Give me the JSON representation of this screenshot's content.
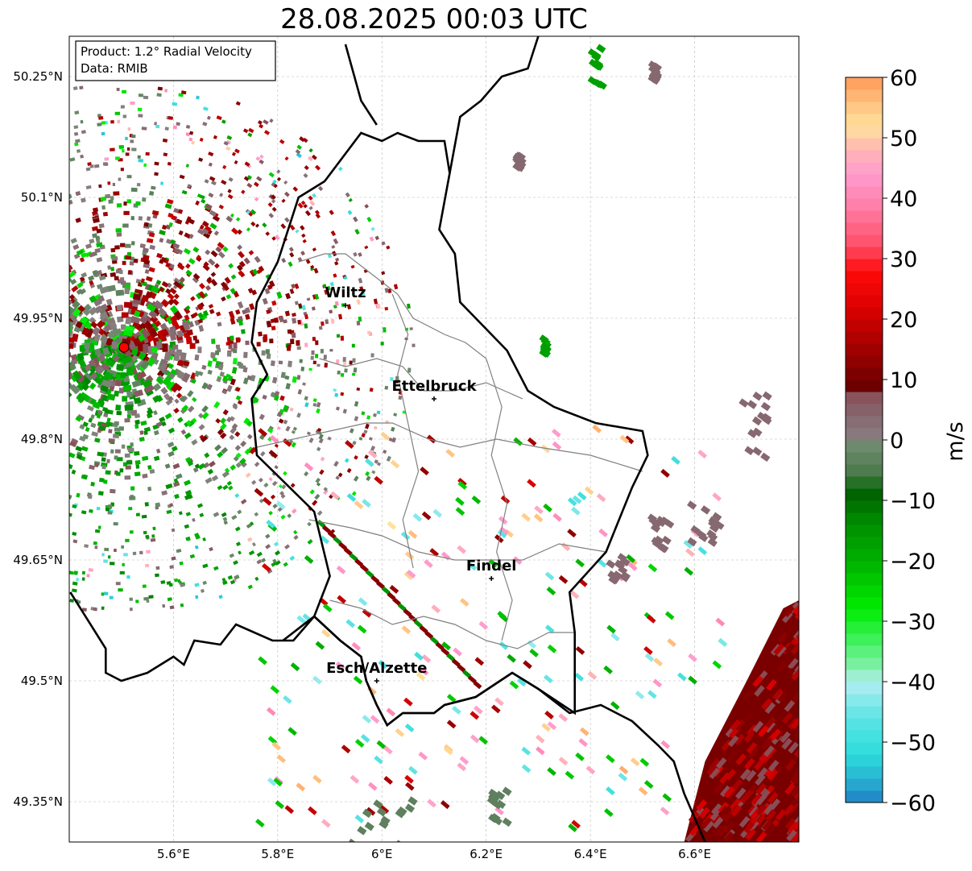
{
  "title": "28.08.2025 00:03 UTC",
  "info_box": {
    "product_line": "Product: 1.2° Radial Velocity",
    "data_line": "Data: RMIB"
  },
  "axes": {
    "lon_range": [
      5.4,
      6.8
    ],
    "lat_range": [
      49.3,
      50.3
    ],
    "lon_ticks": [
      {
        "value": 5.6,
        "label": "5.6°E"
      },
      {
        "value": 5.8,
        "label": "5.8°E"
      },
      {
        "value": 6.0,
        "label": "6°E"
      },
      {
        "value": 6.2,
        "label": "6.2°E"
      },
      {
        "value": 6.4,
        "label": "6.4°E"
      },
      {
        "value": 6.6,
        "label": "6.6°E"
      }
    ],
    "lat_ticks": [
      {
        "value": 50.25,
        "label": "50.25°N"
      },
      {
        "value": 50.1,
        "label": "50.1°N"
      },
      {
        "value": 49.95,
        "label": "49.95°N"
      },
      {
        "value": 49.8,
        "label": "49.8°N"
      },
      {
        "value": 49.65,
        "label": "49.65°N"
      },
      {
        "value": 49.5,
        "label": "49.5°N"
      },
      {
        "value": 49.35,
        "label": "49.35°N"
      }
    ]
  },
  "cities": [
    {
      "name": "Wiltz",
      "lon": 5.93,
      "lat": 49.966
    },
    {
      "name": "Ettelbruck",
      "lon": 6.1,
      "lat": 49.85
    },
    {
      "name": "Findel",
      "lon": 6.21,
      "lat": 49.627
    },
    {
      "name": "Esch/Alzette",
      "lon": 5.99,
      "lat": 49.5
    }
  ],
  "radar_site": {
    "lon": 5.505,
    "lat": 49.914,
    "color": "#ff0000"
  },
  "colorbar": {
    "label": "m/s",
    "min": -60,
    "max": 60,
    "ticks": [
      {
        "value": 60,
        "label": "60"
      },
      {
        "value": 50,
        "label": "50"
      },
      {
        "value": 40,
        "label": "40"
      },
      {
        "value": 30,
        "label": "30"
      },
      {
        "value": 20,
        "label": "20"
      },
      {
        "value": 10,
        "label": "10"
      },
      {
        "value": 0,
        "label": "0"
      },
      {
        "value": -10,
        "label": "−10"
      },
      {
        "value": -20,
        "label": "−20"
      },
      {
        "value": -30,
        "label": "−30"
      },
      {
        "value": -40,
        "label": "−40"
      },
      {
        "value": -50,
        "label": "−50"
      },
      {
        "value": -60,
        "label": "−60"
      }
    ],
    "stops": [
      {
        "value": -60,
        "color": "#1f7fc4"
      },
      {
        "value": -56,
        "color": "#29b4d2"
      },
      {
        "value": -52,
        "color": "#2ddcdc"
      },
      {
        "value": -46,
        "color": "#5de3e3"
      },
      {
        "value": -40,
        "color": "#b3eef2"
      },
      {
        "value": -38,
        "color": "#88f0b0"
      },
      {
        "value": -33,
        "color": "#3ef05a"
      },
      {
        "value": -28,
        "color": "#00ee00"
      },
      {
        "value": -20,
        "color": "#00b000"
      },
      {
        "value": -14,
        "color": "#009000"
      },
      {
        "value": -9,
        "color": "#006400"
      },
      {
        "value": -5,
        "color": "#4e7c4e"
      },
      {
        "value": -1,
        "color": "#6e8a6e"
      },
      {
        "value": 0,
        "color": "#888080"
      },
      {
        "value": 4,
        "color": "#866870"
      },
      {
        "value": 8,
        "color": "#8a4c55"
      },
      {
        "value": 9,
        "color": "#6c0000"
      },
      {
        "value": 15,
        "color": "#a00000"
      },
      {
        "value": 22,
        "color": "#dd0000"
      },
      {
        "value": 28,
        "color": "#ff0a0a"
      },
      {
        "value": 32,
        "color": "#ff4c66"
      },
      {
        "value": 38,
        "color": "#ff7aa2"
      },
      {
        "value": 44,
        "color": "#ff9ccf"
      },
      {
        "value": 48,
        "color": "#ffb4b4"
      },
      {
        "value": 52,
        "color": "#ffe29a"
      },
      {
        "value": 56,
        "color": "#ffbf80"
      },
      {
        "value": 60,
        "color": "#ff9a55"
      }
    ]
  },
  "borders": {
    "country": [
      [
        [
          5.402,
          49.61
        ],
        [
          5.47,
          49.54
        ],
        [
          5.47,
          49.51
        ],
        [
          5.5,
          49.5
        ],
        [
          5.55,
          49.51
        ],
        [
          5.6,
          49.53
        ],
        [
          5.62,
          49.52
        ],
        [
          5.64,
          49.55
        ],
        [
          5.69,
          49.545
        ],
        [
          5.72,
          49.57
        ],
        [
          5.79,
          49.55
        ],
        [
          5.83,
          49.55
        ],
        [
          5.87,
          49.58
        ],
        [
          5.92,
          49.55
        ],
        [
          5.96,
          49.53
        ],
        [
          5.97,
          49.5
        ],
        [
          5.99,
          49.47
        ],
        [
          6.01,
          49.445
        ],
        [
          6.04,
          49.46
        ],
        [
          6.1,
          49.46
        ],
        [
          6.12,
          49.47
        ],
        [
          6.18,
          49.48
        ],
        [
          6.25,
          49.51
        ],
        [
          6.3,
          49.49
        ],
        [
          6.36,
          49.46
        ],
        [
          6.42,
          49.47
        ],
        [
          6.48,
          49.45
        ],
        [
          6.53,
          49.42
        ],
        [
          6.56,
          49.4
        ],
        [
          6.57,
          49.38
        ],
        [
          6.58,
          49.36
        ],
        [
          6.6,
          49.33
        ],
        [
          6.62,
          49.3
        ]
      ]
    ],
    "luxembourg": [
      [
        [
          5.81,
          49.55
        ],
        [
          5.87,
          49.58
        ],
        [
          5.9,
          49.63
        ],
        [
          5.87,
          49.71
        ],
        [
          5.76,
          49.78
        ],
        [
          5.75,
          49.85
        ],
        [
          5.78,
          49.88
        ],
        [
          5.75,
          49.92
        ],
        [
          5.76,
          49.97
        ],
        [
          5.8,
          50.02
        ],
        [
          5.84,
          50.1
        ],
        [
          5.89,
          50.12
        ],
        [
          5.96,
          50.18
        ],
        [
          6.0,
          50.17
        ],
        [
          6.03,
          50.18
        ],
        [
          6.07,
          50.17
        ],
        [
          6.12,
          50.17
        ],
        [
          6.13,
          50.13
        ],
        [
          6.11,
          50.06
        ],
        [
          6.14,
          50.03
        ],
        [
          6.15,
          49.97
        ],
        [
          6.18,
          49.95
        ],
        [
          6.24,
          49.91
        ],
        [
          6.28,
          49.86
        ],
        [
          6.33,
          49.84
        ],
        [
          6.41,
          49.82
        ],
        [
          6.5,
          49.81
        ],
        [
          6.51,
          49.78
        ],
        [
          6.48,
          49.74
        ],
        [
          6.43,
          49.66
        ],
        [
          6.36,
          49.61
        ],
        [
          6.37,
          49.56
        ],
        [
          6.37,
          49.46
        ],
        [
          6.3,
          49.49
        ],
        [
          6.25,
          49.51
        ],
        [
          6.18,
          49.48
        ],
        [
          6.12,
          49.47
        ],
        [
          6.1,
          49.46
        ],
        [
          6.04,
          49.46
        ],
        [
          6.01,
          49.445
        ],
        [
          5.99,
          49.47
        ],
        [
          5.97,
          49.5
        ],
        [
          5.96,
          49.53
        ],
        [
          5.92,
          49.55
        ],
        [
          5.87,
          49.58
        ]
      ]
    ],
    "germany_west": [
      [
        [
          5.93,
          50.29
        ],
        [
          5.96,
          50.22
        ],
        [
          5.99,
          50.19
        ]
      ],
      [
        [
          6.13,
          50.13
        ],
        [
          6.15,
          50.2
        ],
        [
          6.19,
          50.22
        ],
        [
          6.23,
          50.25
        ],
        [
          6.28,
          50.26
        ],
        [
          6.3,
          50.3
        ]
      ]
    ],
    "cantons": [
      [
        [
          5.84,
          50.02
        ],
        [
          5.89,
          50.03
        ],
        [
          5.93,
          50.03
        ],
        [
          5.97,
          50.01
        ],
        [
          6.03,
          49.98
        ],
        [
          6.06,
          49.95
        ],
        [
          6.12,
          49.93
        ],
        [
          6.16,
          49.92
        ],
        [
          6.2,
          49.9
        ]
      ],
      [
        [
          5.88,
          49.9
        ],
        [
          5.93,
          49.89
        ],
        [
          5.99,
          49.9
        ],
        [
          6.04,
          49.89
        ],
        [
          6.08,
          49.86
        ],
        [
          6.14,
          49.86
        ],
        [
          6.2,
          49.87
        ],
        [
          6.27,
          49.85
        ]
      ],
      [
        [
          5.76,
          49.79
        ],
        [
          5.83,
          49.8
        ],
        [
          5.9,
          49.81
        ],
        [
          5.97,
          49.82
        ],
        [
          6.02,
          49.82
        ],
        [
          6.09,
          49.8
        ],
        [
          6.15,
          49.79
        ],
        [
          6.22,
          49.8
        ],
        [
          6.3,
          49.79
        ],
        [
          6.4,
          49.78
        ],
        [
          6.5,
          49.76
        ]
      ],
      [
        [
          5.86,
          49.7
        ],
        [
          5.94,
          49.69
        ],
        [
          6.0,
          49.68
        ],
        [
          6.07,
          49.66
        ],
        [
          6.14,
          49.65
        ],
        [
          6.2,
          49.65
        ],
        [
          6.27,
          49.65
        ],
        [
          6.34,
          49.67
        ],
        [
          6.43,
          49.66
        ]
      ],
      [
        [
          5.9,
          49.6
        ],
        [
          5.96,
          49.59
        ],
        [
          6.02,
          49.57
        ],
        [
          6.08,
          49.58
        ],
        [
          6.14,
          49.57
        ],
        [
          6.2,
          49.55
        ],
        [
          6.26,
          49.54
        ],
        [
          6.32,
          49.56
        ],
        [
          6.37,
          49.56
        ]
      ],
      [
        [
          6.02,
          49.98
        ],
        [
          6.05,
          49.93
        ],
        [
          6.03,
          49.88
        ],
        [
          6.05,
          49.82
        ],
        [
          6.07,
          49.76
        ],
        [
          6.04,
          49.7
        ],
        [
          6.06,
          49.64
        ]
      ],
      [
        [
          6.2,
          49.9
        ],
        [
          6.23,
          49.84
        ],
        [
          6.21,
          49.78
        ],
        [
          6.24,
          49.72
        ],
        [
          6.22,
          49.66
        ],
        [
          6.25,
          49.6
        ],
        [
          6.23,
          49.55
        ]
      ]
    ]
  },
  "echoes": {
    "near_field": {
      "radius_km_lon": 0.38,
      "radius_km_lat": 0.26,
      "count": 2600
    },
    "scattered": [
      {
        "lon": 6.41,
        "lat": 50.27,
        "color": "#00a000",
        "w": 0.02,
        "h": 0.05
      },
      {
        "lon": 6.52,
        "lat": 50.26,
        "color": "#866870",
        "w": 0.01,
        "h": 0.02
      },
      {
        "lon": 6.26,
        "lat": 50.15,
        "color": "#866870",
        "w": 0.01,
        "h": 0.015
      },
      {
        "lon": 6.31,
        "lat": 49.92,
        "color": "#00a000",
        "w": 0.006,
        "h": 0.02
      },
      {
        "lon": 6.72,
        "lat": 49.82,
        "color": "#866870",
        "w": 0.06,
        "h": 0.08
      },
      {
        "lon": 6.62,
        "lat": 49.7,
        "color": "#866870",
        "w": 0.06,
        "h": 0.05
      },
      {
        "lon": 6.53,
        "lat": 49.69,
        "color": "#866870",
        "w": 0.04,
        "h": 0.04
      },
      {
        "lon": 6.45,
        "lat": 49.65,
        "color": "#866870",
        "w": 0.03,
        "h": 0.04
      },
      {
        "lon": 6.0,
        "lat": 49.33,
        "color": "#5f7f5f",
        "w": 0.12,
        "h": 0.07
      },
      {
        "lon": 6.23,
        "lat": 49.35,
        "color": "#5f7f5f",
        "w": 0.05,
        "h": 0.04
      }
    ],
    "southeast_cell": {
      "color_dark": "#7a0000",
      "color_mid": "#8a4c55"
    }
  }
}
